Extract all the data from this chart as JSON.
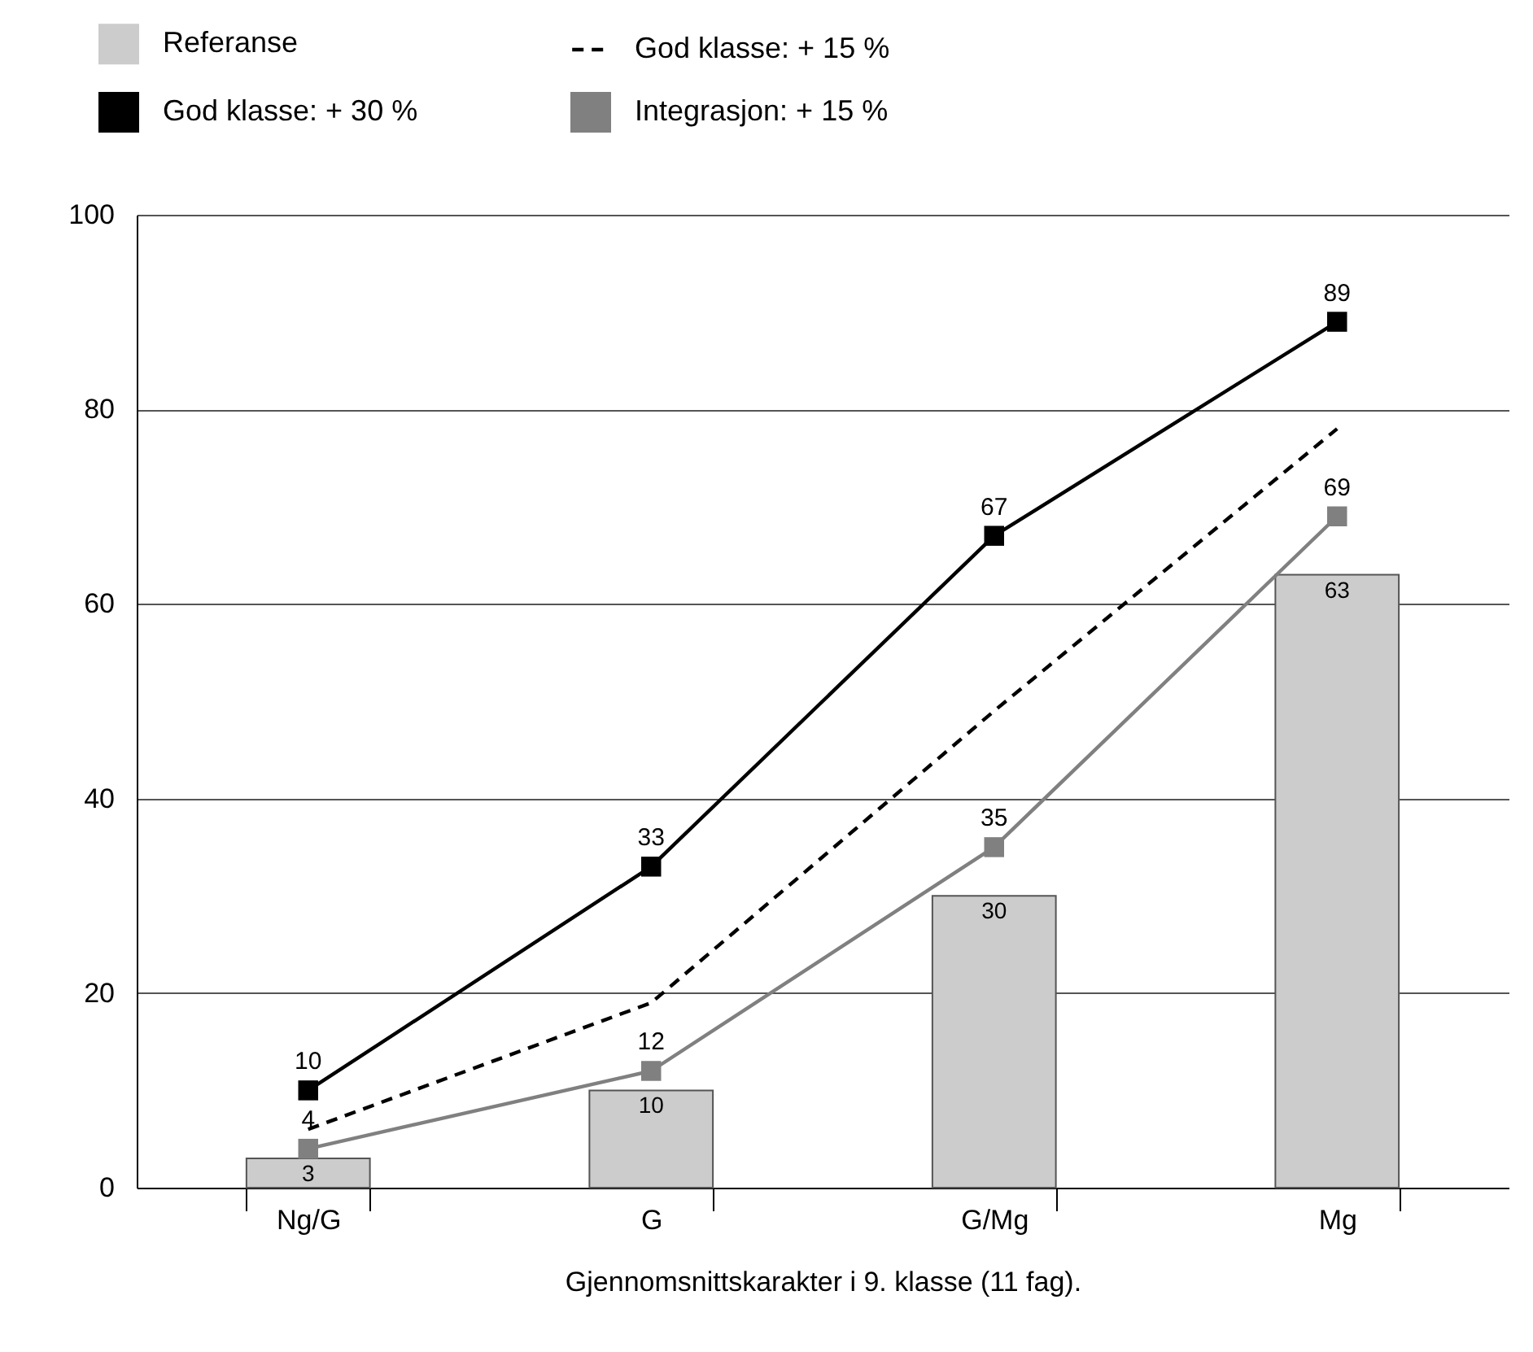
{
  "chart_data": {
    "type": "bar",
    "xlabel": "Gjennomsnittskarakter i 9. klasse (11 fag).",
    "categories": [
      "Ng/G",
      "G",
      "G/Mg",
      "Mg"
    ],
    "series": [
      {
        "name": "Referanse",
        "type": "bar",
        "color": "#cccccc",
        "values": [
          3,
          10,
          30,
          63
        ],
        "value_labels": [
          "3",
          "10",
          "30",
          "63"
        ]
      },
      {
        "name": "God klasse: + 30 %",
        "type": "line",
        "color": "#000000",
        "marker": "square",
        "line_style": "solid",
        "values": [
          10,
          33,
          67,
          89
        ],
        "value_labels": [
          "10",
          "33",
          "67",
          "89"
        ]
      },
      {
        "name": "God klasse: + 15 %",
        "type": "line",
        "color": "#000000",
        "marker": "none",
        "line_style": "dashed",
        "values": [
          6,
          19,
          49,
          78
        ]
      },
      {
        "name": "Integrasjon: + 15 %",
        "type": "line",
        "color": "#808080",
        "marker": "square",
        "line_style": "solid",
        "values": [
          4,
          12,
          35,
          69
        ],
        "value_labels": [
          "4",
          "12",
          "35",
          "69"
        ]
      }
    ],
    "ylim": [
      0,
      100
    ],
    "yticks": [
      0,
      20,
      40,
      60,
      80,
      100
    ],
    "grid": "y",
    "legend": "top"
  }
}
